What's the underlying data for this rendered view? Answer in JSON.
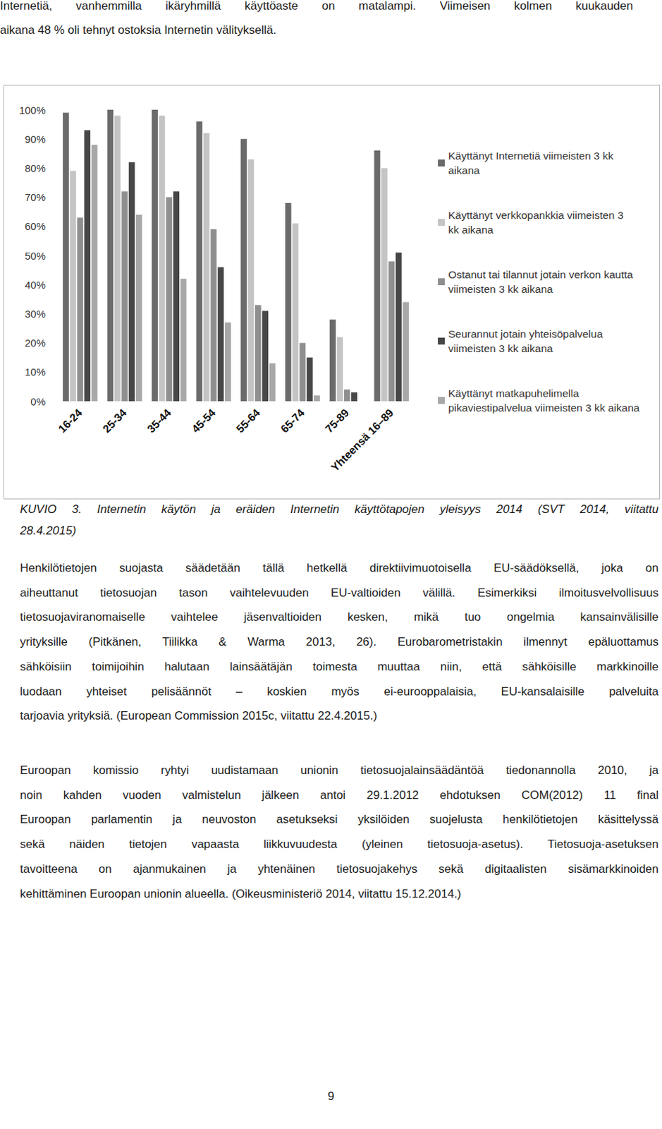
{
  "header": {
    "lines": [
      "Internetiä, vanhemmilla ikäryhmillä käyttöaste on matalampi. Viimeisen kolmen kuukauden",
      "aikana 48 % oli tehnyt ostoksia Internetin välityksellä."
    ]
  },
  "chart_data": {
    "type": "bar",
    "categories": [
      "16-24",
      "25-34",
      "35-44",
      "45-54",
      "55-64",
      "65-74",
      "75-89",
      "Yhteensä 16–89"
    ],
    "series": [
      {
        "name": "Käyttänyt Internetiä viimeisten 3 kk aikana",
        "color": "#6b6b6b",
        "values": [
          99,
          100,
          100,
          96,
          90,
          68,
          28,
          86
        ]
      },
      {
        "name": "Käyttänyt verkkopankkia viimeisten 3 kk aikana",
        "color": "#c4c4c4",
        "values": [
          79,
          98,
          98,
          92,
          83,
          61,
          22,
          80
        ]
      },
      {
        "name": "Ostanut tai tilannut jotain verkon kautta viimeisten 3 kk aikana",
        "color": "#8f8f8f",
        "values": [
          63,
          72,
          70,
          59,
          33,
          20,
          4,
          48
        ]
      },
      {
        "name": "Seurannut jotain yhteisöpalvelua viimeisten 3 kk aikana",
        "color": "#474747",
        "values": [
          93,
          82,
          72,
          46,
          31,
          15,
          3,
          51
        ]
      },
      {
        "name": "Käyttänyt matkapuhelimella pikaviestipalvelua viimeisten 3 kk aikana",
        "color": "#a8a8a8",
        "values": [
          88,
          64,
          42,
          27,
          13,
          2,
          0,
          34
        ]
      }
    ],
    "ylim": [
      0,
      100
    ],
    "yticks": [
      {
        "value": 0,
        "label": "0%"
      },
      {
        "value": 10,
        "label": "10%"
      },
      {
        "value": 20,
        "label": "20%"
      },
      {
        "value": 30,
        "label": "30%"
      },
      {
        "value": 40,
        "label": "40%"
      },
      {
        "value": 50,
        "label": "50%"
      },
      {
        "value": 60,
        "label": "60%"
      },
      {
        "value": 70,
        "label": "70%"
      },
      {
        "value": 80,
        "label": "80%"
      },
      {
        "value": 90,
        "label": "90%"
      },
      {
        "value": 100,
        "label": "100%"
      }
    ],
    "grid": false,
    "legend": "right"
  },
  "caption": {
    "lines": [
      "KUVIO 3. Internetin käytön ja eräiden Internetin käyttötapojen yleisyys 2014 (SVT 2014, viitattu",
      "28.4.2015)"
    ]
  },
  "paragraphs": [
    [
      "Henkilötietojen suojasta säädetään tällä hetkellä direktiivimuotoisella EU-säädöksellä, joka on",
      "aiheuttanut tietosuojan tason vaihtelevuuden EU-valtioiden välillä. Esimerkiksi ilmoitusvelvollisuus",
      "tietosuojaviranomaiselle vaihtelee jäsenvaltioiden kesken, mikä tuo ongelmia kansainvälisille",
      "yrityksille (Pitkänen, Tiilikka & Warma 2013, 26). Eurobarometristakin ilmennyt epäluottamus",
      "sähköisiin toimijoihin halutaan lainsäätäjän toimesta muuttaa niin, että sähköisille markkinoille",
      "luodaan yhteiset pelisäännöt – koskien myös ei-eurooppalaisia, EU-kansalaisille palveluita",
      "tarjoavia yrityksiä. (European Commission 2015c, viitattu 22.4.2015.)"
    ],
    [
      "Euroopan komissio ryhtyi uudistamaan unionin tietosuojalainsäädäntöä tiedonannolla 2010, ja",
      "noin kahden vuoden valmistelun jälkeen antoi 29.1.2012 ehdotuksen COM(2012) 11 final",
      "Euroopan parlamentin ja neuvoston asetukseksi yksilöiden suojelusta henkilötietojen käsittelyssä",
      "sekä näiden tietojen vapaasta liikkuvuudesta (yleinen tietosuoja-asetus). Tietosuoja-asetuksen",
      "tavoitteena on ajanmukainen ja yhtenäinen tietosuojakehys sekä digitaalisten sisämarkkinoiden",
      "kehittäminen Euroopan unionin alueella. (Oikeusministeriö 2014, viitattu 15.12.2014.)"
    ]
  ],
  "page_number": "9"
}
